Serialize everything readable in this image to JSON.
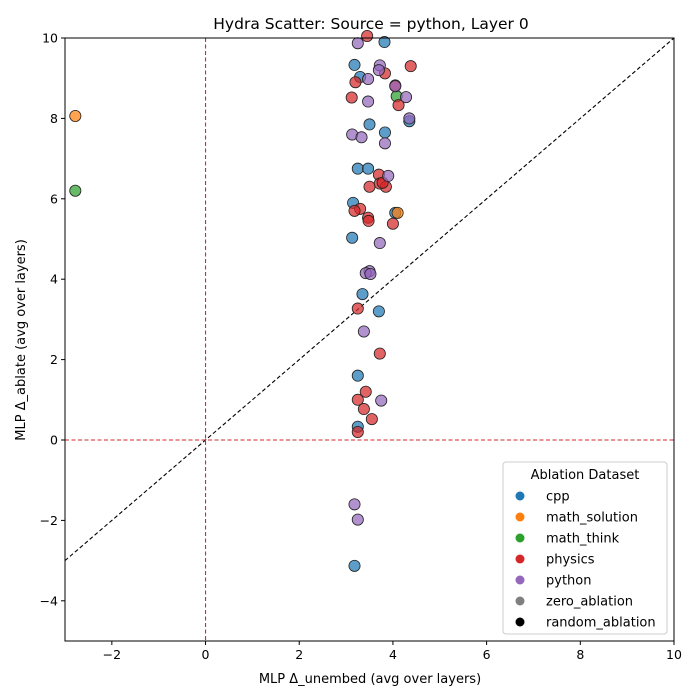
{
  "chart_data": {
    "type": "scatter",
    "title": "Hydra Scatter: Source = python, Layer 0",
    "xlabel": "MLP Δ_unembed (avg over layers)",
    "ylabel": "MLP Δ_ablate (avg over layers)",
    "xlim": [
      -3,
      10
    ],
    "ylim": [
      -5,
      10
    ],
    "xticks": [
      -2,
      0,
      2,
      4,
      6,
      8,
      10
    ],
    "yticks": [
      -4,
      -2,
      0,
      2,
      4,
      6,
      8,
      10
    ],
    "grid": false,
    "legend": {
      "title": "Ablation Dataset",
      "placement": "lower-right",
      "entries": [
        {
          "name": "cpp",
          "color": "#1f77b4"
        },
        {
          "name": "math_solution",
          "color": "#ff7f0e"
        },
        {
          "name": "math_think",
          "color": "#2ca02c"
        },
        {
          "name": "physics",
          "color": "#d62728"
        },
        {
          "name": "python",
          "color": "#9467bd"
        },
        {
          "name": "zero_ablation",
          "color": "#7f7f7f"
        },
        {
          "name": "random_ablation",
          "color": "#000000"
        }
      ]
    },
    "reference_lines": [
      {
        "kind": "diagonal",
        "from": [
          -3,
          -3
        ],
        "to": [
          10,
          10
        ],
        "color": "#000000",
        "style": "dashed"
      },
      {
        "kind": "vertical",
        "x": 0,
        "color": "#d62728",
        "style": "dashed"
      },
      {
        "kind": "horizontal",
        "y": 0,
        "color": "#d62728",
        "style": "dashed"
      }
    ],
    "series": [
      {
        "name": "cpp",
        "color": "#1f77b4",
        "points": [
          [
            3.18,
            9.33
          ],
          [
            3.82,
            9.9
          ],
          [
            3.3,
            9.03
          ],
          [
            3.5,
            7.85
          ],
          [
            3.83,
            7.65
          ],
          [
            4.35,
            7.93
          ],
          [
            3.25,
            6.75
          ],
          [
            3.47,
            6.75
          ],
          [
            3.15,
            5.9
          ],
          [
            4.05,
            5.65
          ],
          [
            3.13,
            5.03
          ],
          [
            3.35,
            3.63
          ],
          [
            3.7,
            3.2
          ],
          [
            3.25,
            1.6
          ],
          [
            3.25,
            0.33
          ],
          [
            3.18,
            -3.13
          ]
        ]
      },
      {
        "name": "math_solution",
        "color": "#ff7f0e",
        "points": [
          [
            -2.78,
            8.06
          ],
          [
            4.1,
            5.65
          ]
        ]
      },
      {
        "name": "math_think",
        "color": "#2ca02c",
        "points": [
          [
            -2.78,
            6.2
          ],
          [
            4.08,
            8.55
          ]
        ]
      },
      {
        "name": "physics",
        "color": "#d62728",
        "points": [
          [
            3.45,
            10.05
          ],
          [
            3.2,
            8.9
          ],
          [
            3.12,
            8.52
          ],
          [
            3.83,
            9.12
          ],
          [
            4.38,
            9.3
          ],
          [
            4.05,
            8.82
          ],
          [
            4.12,
            8.33
          ],
          [
            3.7,
            6.6
          ],
          [
            3.5,
            6.3
          ],
          [
            3.72,
            6.38
          ],
          [
            3.85,
            6.3
          ],
          [
            3.78,
            6.4
          ],
          [
            3.3,
            5.75
          ],
          [
            3.18,
            5.7
          ],
          [
            3.47,
            5.53
          ],
          [
            3.48,
            5.45
          ],
          [
            4.0,
            5.38
          ],
          [
            3.25,
            3.27
          ],
          [
            3.72,
            2.15
          ],
          [
            3.42,
            1.2
          ],
          [
            3.25,
            1.0
          ],
          [
            3.38,
            0.77
          ],
          [
            3.55,
            0.52
          ],
          [
            3.25,
            0.2
          ]
        ]
      },
      {
        "name": "python",
        "color": "#9467bd",
        "points": [
          [
            3.25,
            9.87
          ],
          [
            3.72,
            9.32
          ],
          [
            3.7,
            9.2
          ],
          [
            3.47,
            8.98
          ],
          [
            4.05,
            8.8
          ],
          [
            4.28,
            8.53
          ],
          [
            3.47,
            8.42
          ],
          [
            4.35,
            8.0
          ],
          [
            3.13,
            7.6
          ],
          [
            3.33,
            7.53
          ],
          [
            3.83,
            7.38
          ],
          [
            3.9,
            6.57
          ],
          [
            3.72,
            4.9
          ],
          [
            3.5,
            4.2
          ],
          [
            3.42,
            4.15
          ],
          [
            3.52,
            4.13
          ],
          [
            3.38,
            2.7
          ],
          [
            3.75,
            0.98
          ],
          [
            3.18,
            -1.6
          ],
          [
            3.25,
            -1.98
          ]
        ]
      }
    ]
  }
}
